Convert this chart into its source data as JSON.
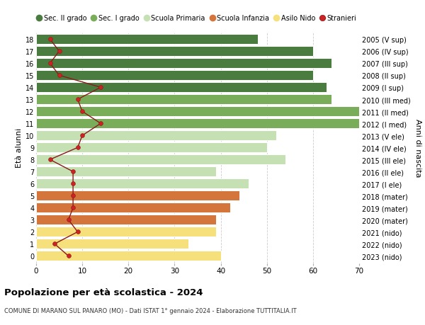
{
  "ages": [
    18,
    17,
    16,
    15,
    14,
    13,
    12,
    11,
    10,
    9,
    8,
    7,
    6,
    5,
    4,
    3,
    2,
    1,
    0
  ],
  "right_labels": [
    "2005 (V sup)",
    "2006 (IV sup)",
    "2007 (III sup)",
    "2008 (II sup)",
    "2009 (I sup)",
    "2010 (III med)",
    "2011 (II med)",
    "2012 (I med)",
    "2013 (V ele)",
    "2014 (IV ele)",
    "2015 (III ele)",
    "2016 (II ele)",
    "2017 (I ele)",
    "2018 (mater)",
    "2019 (mater)",
    "2020 (mater)",
    "2021 (nido)",
    "2022 (nido)",
    "2023 (nido)"
  ],
  "bar_values": [
    48,
    60,
    64,
    60,
    63,
    64,
    70,
    70,
    52,
    50,
    54,
    39,
    46,
    44,
    42,
    39,
    39,
    33,
    40
  ],
  "bar_colors": [
    "#4a7c3f",
    "#4a7c3f",
    "#4a7c3f",
    "#4a7c3f",
    "#4a7c3f",
    "#7aad5a",
    "#7aad5a",
    "#7aad5a",
    "#c5e0b3",
    "#c5e0b3",
    "#c5e0b3",
    "#c5e0b3",
    "#c5e0b3",
    "#d4763b",
    "#d4763b",
    "#d4763b",
    "#f5e07c",
    "#f5e07c",
    "#f5e07c"
  ],
  "stranieri_values": [
    3,
    5,
    3,
    5,
    14,
    9,
    10,
    14,
    10,
    9,
    3,
    8,
    8,
    8,
    8,
    7,
    9,
    4,
    7
  ],
  "legend_labels": [
    "Sec. II grado",
    "Sec. I grado",
    "Scuola Primaria",
    "Scuola Infanzia",
    "Asilo Nido",
    "Stranieri"
  ],
  "legend_colors": [
    "#4a7c3f",
    "#7aad5a",
    "#c5e0b3",
    "#d4763b",
    "#f5e07c",
    "#cc2222"
  ],
  "title": "Popolazione per età scolastica - 2024",
  "subtitle": "COMUNE DI MARANO SUL PANARO (MO) - Dati ISTAT 1° gennaio 2024 - Elaborazione TUTTITALIA.IT",
  "ylabel_left": "Età alunni",
  "ylabel_right": "Anni di nascita",
  "xlim": [
    0,
    70
  ],
  "xticks": [
    0,
    10,
    20,
    30,
    40,
    50,
    60,
    70
  ],
  "background_color": "#ffffff",
  "grid_color": "#cccccc",
  "line_color": "#8b1a1a",
  "dot_color": "#cc2222"
}
